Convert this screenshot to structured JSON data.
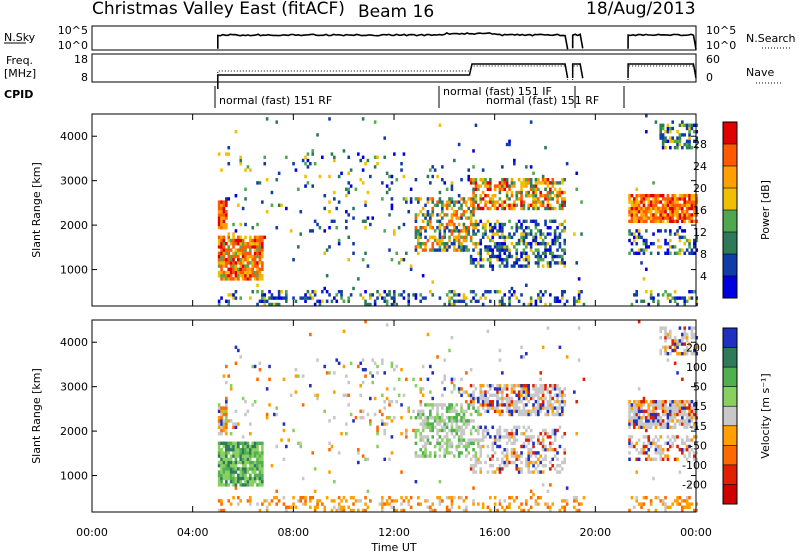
{
  "header": {
    "station": "Christmas Valley East (fitACF)",
    "beam": "Beam 16",
    "date": "18/Aug/2013"
  },
  "status_panels": {
    "nsky": {
      "label": "N.Sky",
      "left_ticks": [
        "10^5",
        "10^0"
      ],
      "right_ticks": [
        "10^5",
        "10^0"
      ],
      "legend": "N.Search",
      "legend_style": "dotted"
    },
    "freq": {
      "label_line1": "Freq.",
      "label_line2": "[MHz]",
      "left_ticks": [
        "18",
        "8"
      ],
      "right_ticks": [
        "60",
        "0"
      ],
      "legend": "Nave",
      "legend_style": "dotted"
    },
    "cpid": {
      "label": "CPID",
      "modes": [
        "normal (fast) 151 RF",
        "normal (fast) 151 IF",
        "normal (fast) 151 RF"
      ]
    }
  },
  "chart_data": [
    {
      "type": "heatmap",
      "panel": "power",
      "ylabel": "Slant Range [km]",
      "xlabel": "",
      "x_range_hours": [
        0,
        24
      ],
      "ylim": [
        180,
        4500
      ],
      "y_ticks": [
        1000,
        2000,
        3000,
        4000
      ],
      "x_ticks": [
        "00:00",
        "04:00",
        "08:00",
        "12:00",
        "16:00",
        "20:00",
        "00:00"
      ],
      "colorbar": {
        "label": "Power [dB]",
        "ticks": [
          "28",
          "24",
          "20",
          "16",
          "12",
          "8",
          "4"
        ],
        "colors": [
          "#e00000",
          "#ff5a00",
          "#ff9f00",
          "#f0c000",
          "#4fa84f",
          "#2d7a5a",
          "#103ca8",
          "#0000e0"
        ]
      },
      "data_gaps_hours": [
        [
          0,
          5.0
        ],
        [
          18.9,
          19.1
        ],
        [
          19.5,
          21.3
        ]
      ],
      "regions": [
        {
          "t": [
            5.0,
            6.8
          ],
          "r": [
            700,
            1700
          ],
          "value": "24-28 dB"
        },
        {
          "t": [
            5.0,
            5.3
          ],
          "r": [
            1900,
            2500
          ],
          "value": "20-28 dB"
        },
        {
          "t": [
            12.8,
            15.2
          ],
          "r": [
            1400,
            2600
          ],
          "value": "12-24 dB"
        },
        {
          "t": [
            15.0,
            18.8
          ],
          "r": [
            2300,
            3000
          ],
          "value": "16-28 dB"
        },
        {
          "t": [
            15.0,
            18.8
          ],
          "r": [
            1000,
            2100
          ],
          "value": "8-24 dB"
        },
        {
          "t": [
            21.3,
            24.0
          ],
          "r": [
            2000,
            2700
          ],
          "value": "20-28 dB"
        },
        {
          "t": [
            21.3,
            24.0
          ],
          "r": [
            1300,
            1900
          ],
          "value": "8-16 dB"
        },
        {
          "t": [
            22.5,
            24.0
          ],
          "r": [
            3700,
            4300
          ],
          "value": "8-16 dB"
        }
      ]
    },
    {
      "type": "heatmap",
      "panel": "velocity",
      "ylabel": "Slant Range [km]",
      "xlabel": "Time UT",
      "x_range_hours": [
        0,
        24
      ],
      "ylim": [
        180,
        4500
      ],
      "y_ticks": [
        1000,
        2000,
        3000,
        4000
      ],
      "x_ticks": [
        "00:00",
        "04:00",
        "08:00",
        "12:00",
        "16:00",
        "20:00",
        "00:00"
      ],
      "colorbar": {
        "label": "Velocity [m s⁻¹]",
        "ticks": [
          "200",
          "100",
          "50",
          "15",
          "-15",
          "-50",
          "-100",
          "-200"
        ],
        "colors": [
          "#2030c0",
          "#2e7a5a",
          "#50b050",
          "#8ad060",
          "#c8c8c8",
          "#ffa000",
          "#ff6a00",
          "#e02000",
          "#d00000"
        ]
      },
      "data_gaps_hours": [
        [
          0,
          5.0
        ],
        [
          18.9,
          19.1
        ],
        [
          19.5,
          21.3
        ]
      ],
      "regions": [
        {
          "t": [
            5.0,
            6.8
          ],
          "r": [
            700,
            1700
          ],
          "value": "15 to 100 m/s"
        },
        {
          "t": [
            12.8,
            15.2
          ],
          "r": [
            1400,
            2600
          ],
          "value": "15 to 50 m/s"
        },
        {
          "t": [
            15.0,
            18.8
          ],
          "r": [
            1000,
            3100
          ],
          "value": "-15 to 15 m/s"
        },
        {
          "t": [
            21.3,
            24.0
          ],
          "r": [
            1300,
            2700
          ],
          "value": "-15 to 15 m/s"
        },
        {
          "t": [
            22.5,
            24.0
          ],
          "r": [
            3700,
            4300
          ],
          "value": "-15 to 15 m/s"
        }
      ]
    }
  ]
}
